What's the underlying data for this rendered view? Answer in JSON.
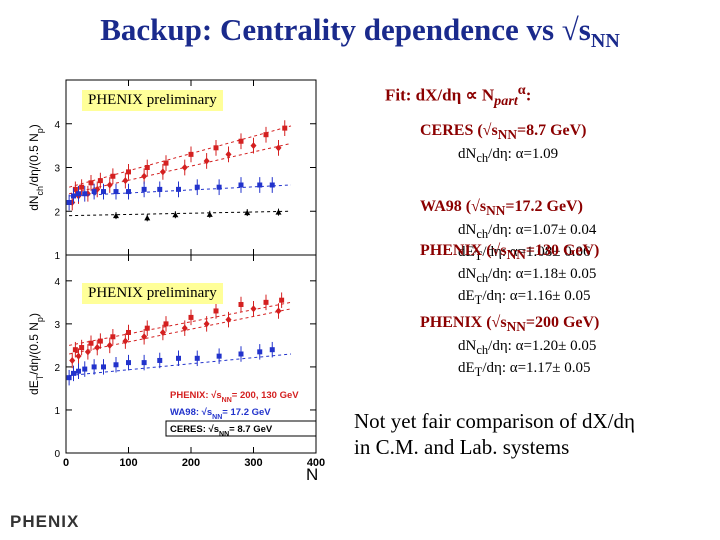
{
  "slide": {
    "title_main": "Backup: Centrality dependence vs √s",
    "title_sub": "NN"
  },
  "labels": {
    "prelim_top": "PHENIX preliminary",
    "prelim_bottom": "PHENIX preliminary",
    "fit_prefix": "Fit: dX/dη ∝ N",
    "fit_sub": "part",
    "fit_sup": "α",
    "fit_suffix": ":"
  },
  "results": [
    {
      "heading": "CERES (√s",
      "heading_sub": "NN",
      "heading_tail": "=8.7 GeV)",
      "lines": [
        {
          "pre": "dN",
          "sub": "ch",
          "post": "/dη: α=1.09"
        }
      ]
    },
    {
      "heading": "WA98 (√s",
      "heading_sub": "NN",
      "heading_tail": "=17.2 GeV)",
      "lines": [
        {
          "pre": "dN",
          "sub": "ch",
          "post": "/dη: α=1.07± 0.04"
        },
        {
          "pre": "dE",
          "sub": "T",
          "post": "/dη: α=1.08± 0.06"
        }
      ]
    },
    {
      "heading": "PHENIX (√s",
      "heading_sub": "NN",
      "heading_tail": "=130 GeV)",
      "lines": [
        {
          "pre": "dN",
          "sub": "ch",
          "post": "/dη: α=1.18± 0.05"
        },
        {
          "pre": "dE",
          "sub": "T",
          "post": "/dη: α=1.16± 0.05"
        }
      ]
    },
    {
      "heading": "PHENIX (√s",
      "heading_sub": "NN",
      "heading_tail": "=200 GeV)",
      "lines": [
        {
          "pre": "dN",
          "sub": "ch",
          "post": "/dη: α=1.20± 0.05"
        },
        {
          "pre": "dE",
          "sub": "T",
          "post": "/dη: α=1.17± 0.05"
        }
      ]
    }
  ],
  "note": {
    "line1": "Not yet fair comparison of  dX/dη",
    "line2": "in C.M. and Lab. systems"
  },
  "logo": {
    "text": "PHENIX"
  },
  "legend": [
    {
      "label": "PHENIX: √s",
      "sub": "NN",
      "tail": "= 200, 130 GeV",
      "color": "#d42020"
    },
    {
      "label": "WA98: √s",
      "sub": "NN",
      "tail": "= 17.2 GeV",
      "color": "#2233cc"
    },
    {
      "label": "CERES: √s",
      "sub": "NN",
      "tail": "= 8.7 GeV",
      "color": "#000000"
    }
  ],
  "chart_data": [
    {
      "type": "scatter",
      "ylabel_pre": "dN",
      "ylabel_sub": "ch",
      "ylabel_post": "/dη/(0.5 N",
      "ylabel_sub2": "p",
      "ylabel_end": ")",
      "xlim": [
        0,
        400
      ],
      "ylim": [
        1,
        5
      ],
      "yticks": [
        1,
        2,
        3,
        4
      ],
      "series": [
        {
          "color": "#d42020",
          "marker": "square",
          "fit": [
            2.55,
            3.95
          ],
          "points": [
            [
              15,
              2.5
            ],
            [
              25,
              2.55
            ],
            [
              40,
              2.65
            ],
            [
              55,
              2.7
            ],
            [
              75,
              2.8
            ],
            [
              100,
              2.9
            ],
            [
              130,
              3.0
            ],
            [
              160,
              3.1
            ],
            [
              200,
              3.3
            ],
            [
              240,
              3.45
            ],
            [
              280,
              3.6
            ],
            [
              320,
              3.75
            ],
            [
              350,
              3.9
            ]
          ]
        },
        {
          "color": "#d42020",
          "marker": "diamond",
          "fit": [
            2.4,
            3.55
          ],
          "points": [
            [
              10,
              2.2
            ],
            [
              20,
              2.35
            ],
            [
              35,
              2.4
            ],
            [
              50,
              2.5
            ],
            [
              70,
              2.6
            ],
            [
              95,
              2.7
            ],
            [
              125,
              2.8
            ],
            [
              155,
              2.9
            ],
            [
              190,
              3.0
            ],
            [
              225,
              3.15
            ],
            [
              260,
              3.3
            ],
            [
              300,
              3.5
            ],
            [
              340,
              3.45
            ]
          ]
        },
        {
          "color": "#2233cc",
          "marker": "square",
          "fit": [
            2.35,
            2.6
          ],
          "points": [
            [
              5,
              2.2
            ],
            [
              12,
              2.35
            ],
            [
              20,
              2.4
            ],
            [
              30,
              2.4
            ],
            [
              45,
              2.45
            ],
            [
              60,
              2.45
            ],
            [
              80,
              2.45
            ],
            [
              100,
              2.45
            ],
            [
              125,
              2.5
            ],
            [
              150,
              2.5
            ],
            [
              180,
              2.5
            ],
            [
              210,
              2.55
            ],
            [
              245,
              2.55
            ],
            [
              280,
              2.6
            ],
            [
              310,
              2.6
            ],
            [
              330,
              2.6
            ]
          ]
        },
        {
          "color": "#000000",
          "marker": "triangle",
          "fit": [
            1.9,
            2.0
          ],
          "points": [
            [
              80,
              1.9
            ],
            [
              130,
              1.85
            ],
            [
              175,
              1.92
            ],
            [
              230,
              1.93
            ],
            [
              290,
              1.97
            ],
            [
              340,
              1.98
            ]
          ]
        }
      ]
    },
    {
      "type": "scatter",
      "xlabel": "N",
      "xlabel_sub": "p",
      "ylabel_pre": "dE",
      "ylabel_sub": "T",
      "ylabel_post": "/dη/(0.5 N",
      "ylabel_sub2": "p",
      "ylabel_end": ")",
      "xlim": [
        0,
        400
      ],
      "ylim": [
        0,
        4.6
      ],
      "xticks": [
        0,
        100,
        200,
        300,
        400
      ],
      "yticks": [
        0,
        1,
        2,
        3,
        4
      ],
      "series": [
        {
          "color": "#d42020",
          "marker": "square",
          "fit": [
            2.5,
            3.5
          ],
          "points": [
            [
              15,
              2.4
            ],
            [
              25,
              2.45
            ],
            [
              40,
              2.55
            ],
            [
              55,
              2.6
            ],
            [
              75,
              2.7
            ],
            [
              100,
              2.8
            ],
            [
              130,
              2.9
            ],
            [
              160,
              3.0
            ],
            [
              200,
              3.15
            ],
            [
              240,
              3.3
            ],
            [
              280,
              3.45
            ],
            [
              320,
              3.5
            ],
            [
              345,
              3.55
            ]
          ]
        },
        {
          "color": "#d42020",
          "marker": "diamond",
          "fit": [
            2.3,
            3.35
          ],
          "points": [
            [
              10,
              2.15
            ],
            [
              20,
              2.25
            ],
            [
              35,
              2.35
            ],
            [
              50,
              2.45
            ],
            [
              70,
              2.5
            ],
            [
              95,
              2.6
            ],
            [
              125,
              2.7
            ],
            [
              155,
              2.8
            ],
            [
              190,
              2.9
            ],
            [
              225,
              3.0
            ],
            [
              260,
              3.1
            ],
            [
              300,
              3.35
            ],
            [
              340,
              3.3
            ]
          ]
        },
        {
          "color": "#2233cc",
          "marker": "square",
          "fit": [
            1.8,
            2.3
          ],
          "points": [
            [
              5,
              1.75
            ],
            [
              12,
              1.85
            ],
            [
              20,
              1.9
            ],
            [
              30,
              1.95
            ],
            [
              45,
              2.0
            ],
            [
              60,
              2.0
            ],
            [
              80,
              2.05
            ],
            [
              100,
              2.1
            ],
            [
              125,
              2.1
            ],
            [
              150,
              2.15
            ],
            [
              180,
              2.2
            ],
            [
              210,
              2.2
            ],
            [
              245,
              2.25
            ],
            [
              280,
              2.3
            ],
            [
              310,
              2.35
            ],
            [
              330,
              2.4
            ]
          ]
        }
      ]
    }
  ]
}
